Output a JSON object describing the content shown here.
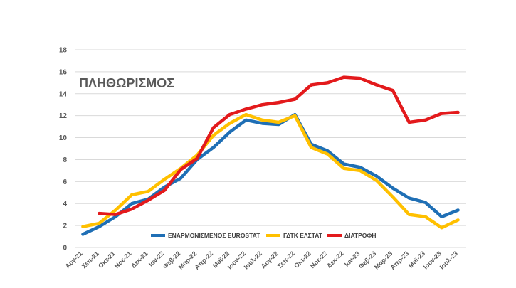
{
  "chart_data": {
    "type": "line",
    "title": "ΠΛΗΘΩΡΙΣΜΟΣ",
    "xlabel": "",
    "ylabel": "",
    "ylim": [
      0,
      18
    ],
    "yticks": [
      0,
      2,
      4,
      6,
      8,
      10,
      12,
      14,
      16,
      18
    ],
    "grid": true,
    "legend_position": "bottom-right",
    "categories": [
      "Αυγ-21",
      "Σεπ-21",
      "Οκτ-21",
      "Νοε-21",
      "Δεκ-21",
      "Ιαν-22",
      "Φεβ-22",
      "Μαρ-22",
      "Απρ-22",
      "Μαϊ-22",
      "Ιουν-22",
      "Ιουλ-22",
      "Αυγ-22",
      "Σεπ-22",
      "Οκτ-22",
      "Νοε-22",
      "Δεκ-22",
      "Ιαν-23",
      "Φεβ-23",
      "Μαρ-23",
      "Απρ-23",
      "Μαϊ-23",
      "Ιουν-23",
      "Ιουλ-23"
    ],
    "series": [
      {
        "name": "ΕΝΑΡΜΟΝΙΣΜΕΝΟΣ EUROSTAT",
        "color": "#1f6fb5",
        "values": [
          1.2,
          1.9,
          2.8,
          4.0,
          4.4,
          5.5,
          6.3,
          8.0,
          9.1,
          10.5,
          11.6,
          11.3,
          11.2,
          12.1,
          9.4,
          8.8,
          7.6,
          7.3,
          6.5,
          5.4,
          4.5,
          4.1,
          2.8,
          3.4
        ]
      },
      {
        "name": "ΓΔΤΚ ΕΛΣΤΑΤ",
        "color": "#ffc000",
        "values": [
          1.9,
          2.2,
          3.4,
          4.8,
          5.1,
          6.2,
          7.2,
          8.4,
          10.2,
          11.3,
          12.1,
          11.6,
          11.4,
          12.0,
          9.1,
          8.5,
          7.2,
          7.0,
          6.1,
          4.6,
          3.0,
          2.8,
          1.8,
          2.5
        ]
      },
      {
        "name": "ΔΙΑΤΡΟΦΗ",
        "color": "#e31a1c",
        "values": [
          null,
          3.1,
          3.0,
          3.5,
          4.3,
          5.2,
          7.1,
          8.1,
          10.9,
          12.1,
          12.6,
          13.0,
          13.2,
          13.5,
          14.8,
          15.0,
          15.5,
          15.4,
          14.8,
          14.3,
          11.4,
          11.6,
          12.2,
          12.3
        ]
      }
    ]
  }
}
